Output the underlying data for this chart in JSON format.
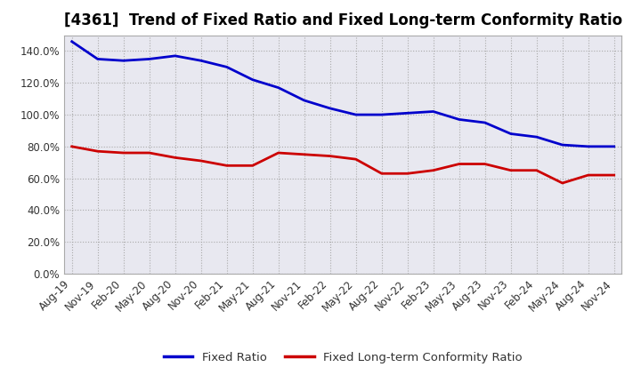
{
  "title": "[4361]  Trend of Fixed Ratio and Fixed Long-term Conformity Ratio",
  "x_labels": [
    "Aug-19",
    "Nov-19",
    "Feb-20",
    "May-20",
    "Aug-20",
    "Nov-20",
    "Feb-21",
    "May-21",
    "Aug-21",
    "Nov-21",
    "Feb-22",
    "May-22",
    "Aug-22",
    "Nov-22",
    "Feb-23",
    "May-23",
    "Aug-23",
    "Nov-23",
    "Feb-24",
    "May-24",
    "Aug-24",
    "Nov-24"
  ],
  "fixed_ratio": [
    1.46,
    1.35,
    1.34,
    1.35,
    1.37,
    1.34,
    1.3,
    1.22,
    1.17,
    1.09,
    1.04,
    1.0,
    1.0,
    1.01,
    1.02,
    0.97,
    0.95,
    0.88,
    0.86,
    0.81,
    0.8,
    0.8
  ],
  "fixed_lt_ratio": [
    0.8,
    0.77,
    0.76,
    0.76,
    0.73,
    0.71,
    0.68,
    0.68,
    0.76,
    0.75,
    0.74,
    0.72,
    0.63,
    0.63,
    0.65,
    0.69,
    0.69,
    0.65,
    0.65,
    0.57,
    0.62,
    0.62
  ],
  "fixed_ratio_color": "#0000CC",
  "fixed_lt_ratio_color": "#CC0000",
  "background_color": "#FFFFFF",
  "plot_bg_color": "#E8E8F0",
  "grid_color": "#AAAAAA",
  "ylim": [
    0.0,
    1.5
  ],
  "yticks": [
    0.0,
    0.2,
    0.4,
    0.6,
    0.8,
    1.0,
    1.2,
    1.4
  ],
  "legend_fixed_ratio": "Fixed Ratio",
  "legend_fixed_lt_ratio": "Fixed Long-term Conformity Ratio",
  "title_fontsize": 12,
  "axis_fontsize": 8.5,
  "legend_fontsize": 9.5,
  "line_width": 2.0
}
